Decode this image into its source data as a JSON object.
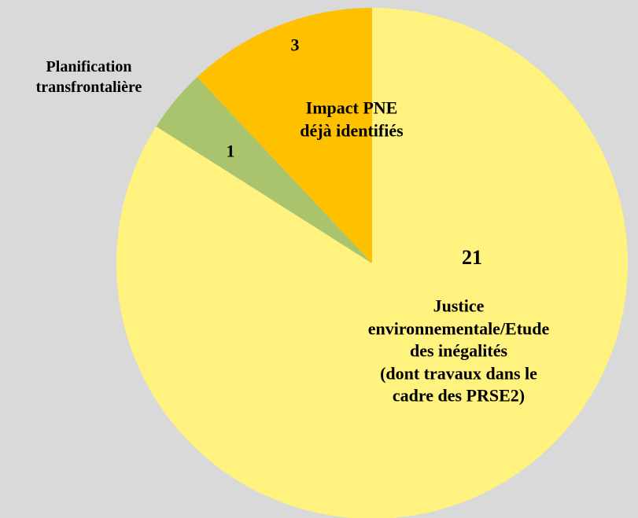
{
  "chart_data": {
    "type": "pie",
    "categories": [
      "Justice environnementale/Etude des inégalités\n(dont travaux dans le cadre des PRSE2)",
      "Planification\ntransfrontalière",
      "Impact PNE\ndéjà identifiés"
    ],
    "values": [
      21,
      1,
      3
    ],
    "colors": [
      "#fff27e",
      "#a9c46c",
      "#ffc000"
    ]
  }
}
